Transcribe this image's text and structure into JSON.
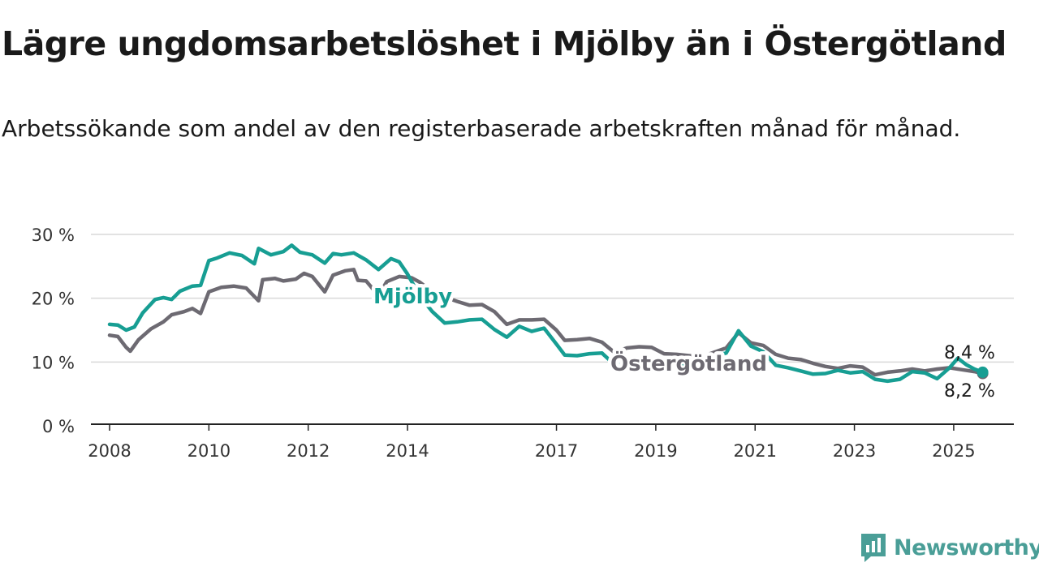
{
  "header": {
    "title": "Lägre ungdomsarbetslöshet i Mjölby än i Östergötland",
    "subtitle": "Arbetssökande som andel av den registerbaserade arbetskraften månad för månad."
  },
  "brand": {
    "name": "Newsworthy",
    "color": "#4a9e97"
  },
  "chart_data": {
    "type": "line",
    "y_unit": "%",
    "ylim": [
      0,
      30
    ],
    "xlim": [
      "2008-01",
      "2025-12"
    ],
    "y_ticks": [
      "0 %",
      "10 %",
      "20 %",
      "30 %"
    ],
    "x_ticks": [
      "2008",
      "2010",
      "2012",
      "2014",
      "2017",
      "2019",
      "2021",
      "2023",
      "2025"
    ],
    "grid": "horizontal",
    "series": [
      {
        "name": "Östergötland",
        "color": "#6d6a72",
        "end_label": "8,2 %",
        "points": [
          [
            "2008-01",
            14.2
          ],
          [
            "2008-03",
            14.0
          ],
          [
            "2008-05",
            12.3
          ],
          [
            "2008-06",
            11.7
          ],
          [
            "2008-08",
            13.5
          ],
          [
            "2008-11",
            15.2
          ],
          [
            "2009-02",
            16.3
          ],
          [
            "2009-04",
            17.4
          ],
          [
            "2009-07",
            17.9
          ],
          [
            "2009-09",
            18.4
          ],
          [
            "2009-11",
            17.6
          ],
          [
            "2010-01",
            21.0
          ],
          [
            "2010-04",
            21.7
          ],
          [
            "2010-07",
            21.9
          ],
          [
            "2010-10",
            21.6
          ],
          [
            "2011-01",
            19.6
          ],
          [
            "2011-02",
            22.9
          ],
          [
            "2011-05",
            23.1
          ],
          [
            "2011-07",
            22.7
          ],
          [
            "2011-10",
            23.0
          ],
          [
            "2011-12",
            23.9
          ],
          [
            "2012-02",
            23.4
          ],
          [
            "2012-05",
            21.0
          ],
          [
            "2012-07",
            23.6
          ],
          [
            "2012-10",
            24.3
          ],
          [
            "2012-12",
            24.5
          ],
          [
            "2013-01",
            22.8
          ],
          [
            "2013-03",
            22.7
          ],
          [
            "2013-06",
            20.4
          ],
          [
            "2013-08",
            22.6
          ],
          [
            "2013-11",
            23.4
          ],
          [
            "2014-02",
            23.2
          ],
          [
            "2014-04",
            22.5
          ],
          [
            "2014-07",
            21.0
          ],
          [
            "2014-10",
            20.2
          ],
          [
            "2015-01",
            19.5
          ],
          [
            "2015-04",
            18.9
          ],
          [
            "2015-07",
            19.0
          ],
          [
            "2015-10",
            17.9
          ],
          [
            "2016-01",
            15.9
          ],
          [
            "2016-04",
            16.6
          ],
          [
            "2016-07",
            16.6
          ],
          [
            "2016-10",
            16.7
          ],
          [
            "2017-01",
            15.0
          ],
          [
            "2017-03",
            13.4
          ],
          [
            "2017-06",
            13.5
          ],
          [
            "2017-09",
            13.7
          ],
          [
            "2017-12",
            13.1
          ],
          [
            "2018-03",
            11.5
          ],
          [
            "2018-06",
            12.2
          ],
          [
            "2018-09",
            12.4
          ],
          [
            "2018-12",
            12.3
          ],
          [
            "2019-03",
            11.3
          ],
          [
            "2019-06",
            11.2
          ],
          [
            "2019-09",
            11.0
          ],
          [
            "2019-12",
            10.8
          ],
          [
            "2020-03",
            11.5
          ],
          [
            "2020-06",
            12.2
          ],
          [
            "2020-09",
            14.6
          ],
          [
            "2020-12",
            13.0
          ],
          [
            "2021-03",
            12.6
          ],
          [
            "2021-06",
            11.2
          ],
          [
            "2021-09",
            10.6
          ],
          [
            "2021-12",
            10.4
          ],
          [
            "2022-03",
            9.8
          ],
          [
            "2022-06",
            9.3
          ],
          [
            "2022-09",
            9.0
          ],
          [
            "2022-12",
            9.4
          ],
          [
            "2023-03",
            9.2
          ],
          [
            "2023-06",
            8.0
          ],
          [
            "2023-09",
            8.4
          ],
          [
            "2023-12",
            8.6
          ],
          [
            "2024-03",
            8.9
          ],
          [
            "2024-06",
            8.6
          ],
          [
            "2024-09",
            8.9
          ],
          [
            "2024-12",
            9.1
          ],
          [
            "2025-03",
            8.8
          ],
          [
            "2025-06",
            8.5
          ],
          [
            "2025-08",
            8.2
          ]
        ]
      },
      {
        "name": "Mjölby",
        "color": "#179e93",
        "end_label": "8,4 %",
        "points": [
          [
            "2008-01",
            15.9
          ],
          [
            "2008-03",
            15.8
          ],
          [
            "2008-05",
            15.0
          ],
          [
            "2008-07",
            15.5
          ],
          [
            "2008-09",
            17.7
          ],
          [
            "2008-12",
            19.8
          ],
          [
            "2009-02",
            20.1
          ],
          [
            "2009-04",
            19.8
          ],
          [
            "2009-06",
            21.1
          ],
          [
            "2009-09",
            21.9
          ],
          [
            "2009-11",
            22.0
          ],
          [
            "2010-01",
            25.9
          ],
          [
            "2010-03",
            26.3
          ],
          [
            "2010-06",
            27.1
          ],
          [
            "2010-09",
            26.7
          ],
          [
            "2010-12",
            25.4
          ],
          [
            "2011-01",
            27.8
          ],
          [
            "2011-04",
            26.8
          ],
          [
            "2011-07",
            27.3
          ],
          [
            "2011-09",
            28.3
          ],
          [
            "2011-11",
            27.2
          ],
          [
            "2012-02",
            26.8
          ],
          [
            "2012-05",
            25.5
          ],
          [
            "2012-07",
            27.0
          ],
          [
            "2012-09",
            26.8
          ],
          [
            "2012-12",
            27.1
          ],
          [
            "2013-03",
            26.0
          ],
          [
            "2013-06",
            24.5
          ],
          [
            "2013-09",
            26.2
          ],
          [
            "2013-11",
            25.7
          ],
          [
            "2014-01",
            23.8
          ],
          [
            "2014-04",
            20.3
          ],
          [
            "2014-07",
            17.9
          ],
          [
            "2014-10",
            16.1
          ],
          [
            "2015-01",
            16.3
          ],
          [
            "2015-04",
            16.6
          ],
          [
            "2015-07",
            16.7
          ],
          [
            "2015-10",
            15.1
          ],
          [
            "2016-01",
            13.9
          ],
          [
            "2016-04",
            15.6
          ],
          [
            "2016-07",
            14.8
          ],
          [
            "2016-10",
            15.3
          ],
          [
            "2017-01",
            12.8
          ],
          [
            "2017-03",
            11.1
          ],
          [
            "2017-06",
            11.0
          ],
          [
            "2017-09",
            11.3
          ],
          [
            "2017-12",
            11.4
          ],
          [
            "2018-03",
            9.6
          ],
          [
            "2018-06",
            9.5
          ],
          [
            "2018-09",
            9.3
          ],
          [
            "2018-12",
            8.5
          ],
          [
            "2019-03",
            9.2
          ],
          [
            "2019-06",
            9.6
          ],
          [
            "2019-09",
            9.9
          ],
          [
            "2019-12",
            10.5
          ],
          [
            "2020-03",
            11.0
          ],
          [
            "2020-06",
            11.4
          ],
          [
            "2020-09",
            14.9
          ],
          [
            "2020-12",
            12.5
          ],
          [
            "2021-03",
            11.6
          ],
          [
            "2021-06",
            9.5
          ],
          [
            "2021-09",
            9.1
          ],
          [
            "2021-12",
            8.6
          ],
          [
            "2022-03",
            8.1
          ],
          [
            "2022-06",
            8.2
          ],
          [
            "2022-09",
            8.7
          ],
          [
            "2022-12",
            8.3
          ],
          [
            "2023-03",
            8.5
          ],
          [
            "2023-06",
            7.3
          ],
          [
            "2023-09",
            7.0
          ],
          [
            "2023-12",
            7.3
          ],
          [
            "2024-03",
            8.5
          ],
          [
            "2024-06",
            8.3
          ],
          [
            "2024-09",
            7.4
          ],
          [
            "2024-12",
            9.1
          ],
          [
            "2025-02",
            10.6
          ],
          [
            "2025-04",
            9.6
          ],
          [
            "2025-06",
            8.9
          ],
          [
            "2025-08",
            8.4
          ]
        ]
      }
    ]
  }
}
